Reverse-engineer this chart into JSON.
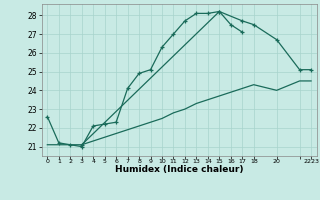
{
  "xlabel": "Humidex (Indice chaleur)",
  "bg_color": "#c8eae4",
  "line_color": "#1a6b5a",
  "grid_color": "#a8d4cc",
  "xlim": [
    -0.5,
    23.5
  ],
  "ylim": [
    20.5,
    28.6
  ],
  "yticks": [
    21,
    22,
    23,
    24,
    25,
    26,
    27,
    28
  ],
  "xtick_positions": [
    0,
    1,
    2,
    3,
    4,
    5,
    6,
    7,
    8,
    9,
    10,
    11,
    12,
    13,
    14,
    15,
    16,
    17,
    18,
    20,
    22,
    23
  ],
  "xtick_labels": [
    "0",
    "1",
    "2",
    "3",
    "4",
    "5",
    "6",
    "7",
    "8",
    "9",
    "10",
    "11",
    "12",
    "13",
    "14",
    "15",
    "16",
    "17",
    "18",
    "20",
    "",
    "2223"
  ],
  "line1_x": [
    0,
    1,
    2,
    3,
    4,
    5,
    6,
    7,
    8,
    9,
    10,
    11,
    12,
    13,
    14,
    15,
    16,
    17
  ],
  "line1_y": [
    22.6,
    21.2,
    21.1,
    21.0,
    22.1,
    22.2,
    22.3,
    24.1,
    24.9,
    25.1,
    26.3,
    27.0,
    27.7,
    28.1,
    28.1,
    28.2,
    27.5,
    27.1
  ],
  "line2_x": [
    0,
    1,
    2,
    3,
    4,
    5,
    6,
    7,
    8,
    9,
    10,
    11,
    12,
    13,
    14,
    15,
    16,
    17,
    18,
    20,
    22,
    23
  ],
  "line2_y": [
    21.1,
    21.1,
    21.1,
    21.1,
    21.3,
    21.5,
    21.7,
    21.9,
    22.1,
    22.3,
    22.5,
    22.8,
    23.0,
    23.3,
    23.5,
    23.7,
    23.9,
    24.1,
    24.3,
    24.0,
    24.5,
    24.5
  ],
  "line3_x": [
    3,
    15,
    17,
    18,
    20,
    22,
    23
  ],
  "line3_y": [
    21.1,
    28.2,
    27.7,
    27.5,
    26.7,
    25.1,
    25.1
  ]
}
